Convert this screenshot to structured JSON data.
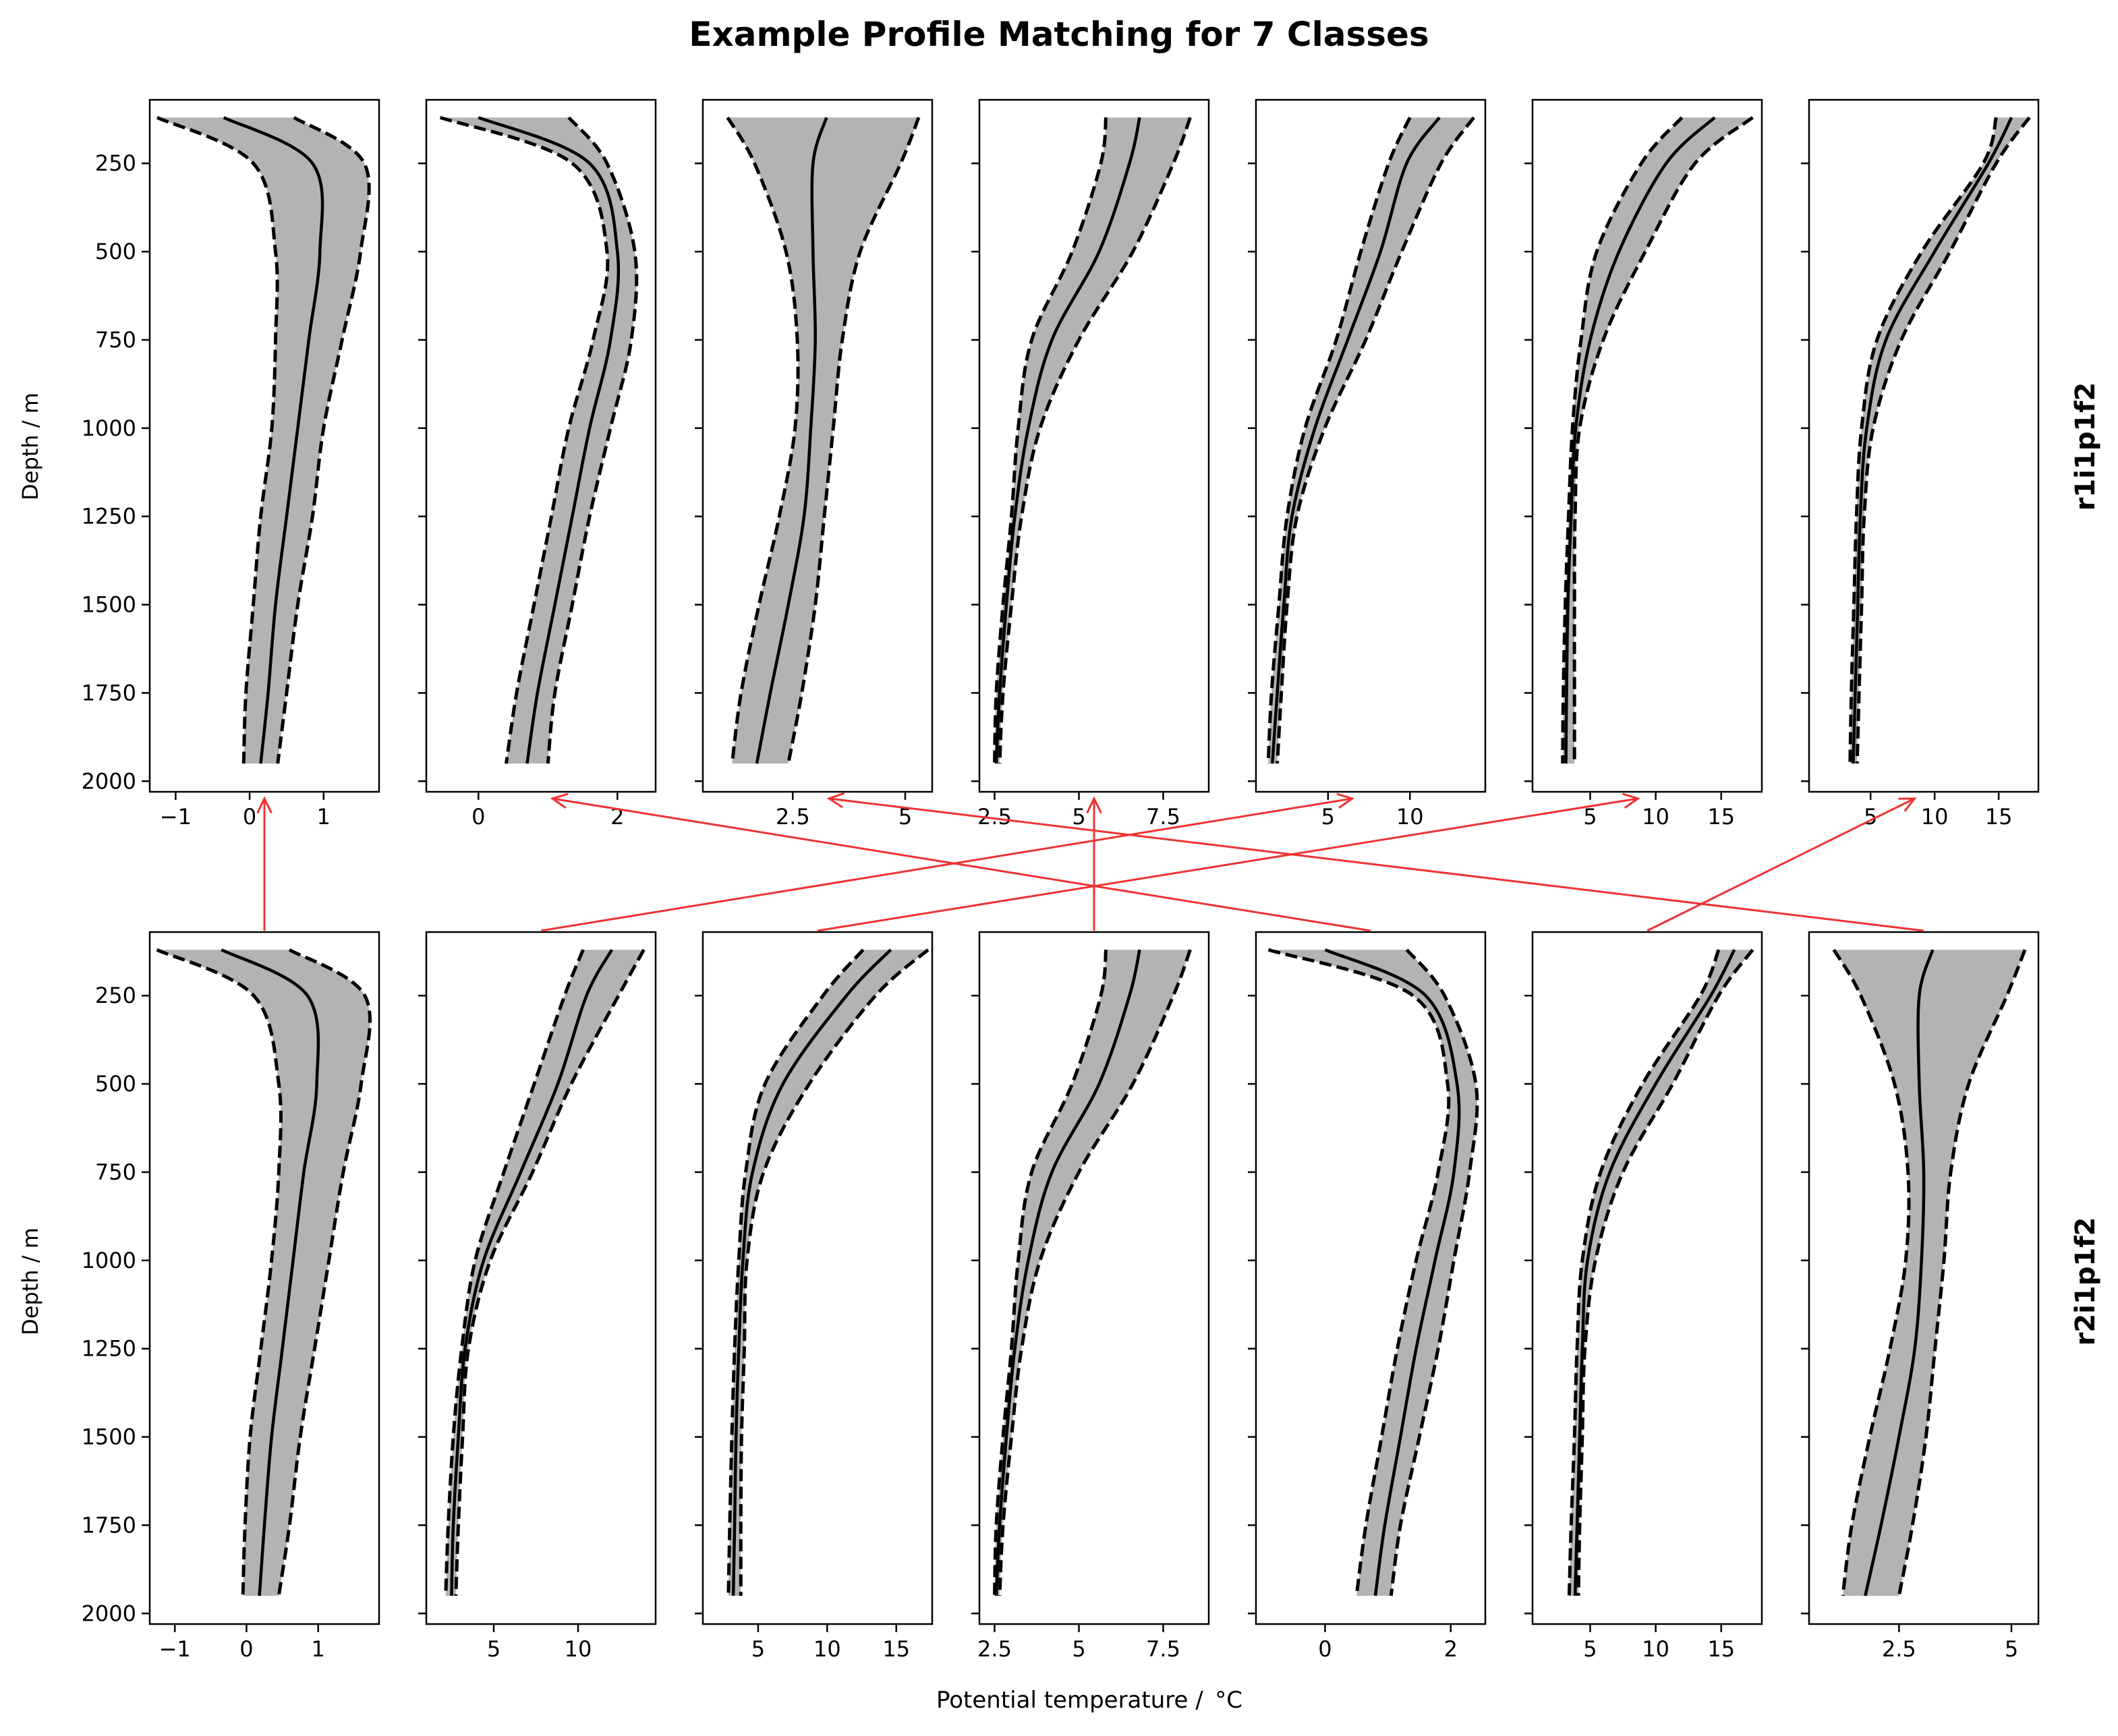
{
  "title": "Example Profile Matching for 7 Classes",
  "xlabel": "Potential temperature / $^\\circ$C",
  "xlabel_display": "Potential temperature /  °C",
  "ylabel": "Depth / m",
  "colors": {
    "band": "#b3b3b3",
    "line": "#000000",
    "arrow": "#ee3333"
  },
  "chart_data": {
    "type": "line",
    "description_free": true,
    "ylim": [
      2030,
      70
    ],
    "yticks": [
      250,
      500,
      750,
      1000,
      1250,
      1500,
      1750,
      2000
    ],
    "depth": [
      120,
      250,
      500,
      750,
      1000,
      1250,
      1500,
      1750,
      1950
    ],
    "rows": [
      {
        "label": "r1i1p1f2",
        "panels": [
          {
            "class": 1,
            "xlim": [
              -1.35,
              1.75
            ],
            "xticks": [
              -1,
              0,
              1
            ],
            "mean": [
              -0.35,
              0.85,
              0.95,
              0.8,
              0.65,
              0.5,
              0.35,
              0.25,
              0.15
            ],
            "lower": [
              -1.25,
              0.05,
              0.35,
              0.35,
              0.3,
              0.15,
              0.05,
              -0.05,
              -0.08
            ],
            "upper": [
              0.6,
              1.55,
              1.5,
              1.25,
              1.0,
              0.85,
              0.65,
              0.5,
              0.38
            ]
          },
          {
            "class": 2,
            "xlim": [
              -0.75,
              2.55
            ],
            "xticks": [
              0,
              2
            ],
            "mean": [
              0.0,
              1.6,
              2.0,
              1.9,
              1.6,
              1.35,
              1.1,
              0.85,
              0.7
            ],
            "lower": [
              -0.55,
              1.35,
              1.85,
              1.65,
              1.3,
              1.05,
              0.8,
              0.55,
              0.4
            ],
            "upper": [
              1.3,
              1.85,
              2.25,
              2.2,
              1.9,
              1.6,
              1.35,
              1.1,
              1.0
            ]
          },
          {
            "class": 3,
            "xlim": [
              0.5,
              5.6
            ],
            "xticks": [
              2.5,
              5.0
            ],
            "mean": [
              3.25,
              2.95,
              2.95,
              3.0,
              2.9,
              2.75,
              2.4,
              2.0,
              1.7
            ],
            "lower": [
              1.05,
              1.65,
              2.35,
              2.6,
              2.55,
              2.2,
              1.75,
              1.35,
              1.15
            ],
            "upper": [
              5.3,
              4.9,
              4.0,
              3.6,
              3.4,
              3.2,
              3.0,
              2.7,
              2.4
            ]
          },
          {
            "class": 4,
            "xlim": [
              2.05,
              8.85
            ],
            "xticks": [
              2.5,
              5.0,
              7.5
            ],
            "mean": [
              6.8,
              6.5,
              5.6,
              4.2,
              3.5,
              3.1,
              2.85,
              2.65,
              2.55
            ],
            "lower": [
              5.8,
              5.65,
              4.8,
              3.6,
              3.2,
              3.0,
              2.75,
              2.55,
              2.5
            ],
            "upper": [
              8.3,
              7.8,
              6.6,
              5.0,
              3.85,
              3.3,
              3.0,
              2.75,
              2.65
            ]
          },
          {
            "class": 5,
            "xlim": [
              0.6,
              14.6
            ],
            "xticks": [
              5,
              10
            ],
            "mean": [
              11.8,
              9.8,
              8.2,
              6.2,
              4.2,
              2.8,
              2.3,
              1.9,
              1.6
            ],
            "lower": [
              10.0,
              8.7,
              7.0,
              5.5,
              3.6,
              2.5,
              2.0,
              1.55,
              1.35
            ],
            "upper": [
              13.9,
              11.9,
              9.5,
              7.3,
              4.8,
              3.1,
              2.5,
              2.15,
              1.9
            ]
          },
          {
            "class": 6,
            "xlim": [
              0.6,
              18.1
            ],
            "xticks": [
              5,
              10,
              15
            ],
            "mean": [
              14.5,
              10.8,
              7.2,
              5.0,
              3.9,
              3.55,
              3.3,
              3.2,
              3.15
            ],
            "lower": [
              12.0,
              8.9,
              5.5,
              4.3,
              3.65,
              3.35,
              3.1,
              2.95,
              2.9
            ],
            "upper": [
              17.4,
              13.0,
              9.2,
              6.0,
              4.2,
              3.85,
              3.8,
              3.8,
              3.8
            ]
          },
          {
            "class": 7,
            "xlim": [
              0.2,
              18.1
            ],
            "xticks": [
              5,
              10,
              15
            ],
            "mean": [
              16.0,
              14.2,
              10.0,
              6.2,
              4.7,
              4.2,
              4.0,
              3.8,
              3.65
            ],
            "lower": [
              14.8,
              13.8,
              9.0,
              5.5,
              4.3,
              3.9,
              3.7,
              3.5,
              3.4
            ],
            "upper": [
              17.4,
              14.8,
              11.2,
              7.4,
              5.2,
              4.5,
              4.3,
              4.1,
              3.95
            ]
          }
        ]
      },
      {
        "label": "r2i1p1f2",
        "panels": [
          {
            "class": 1,
            "xlim": [
              -1.35,
              1.85
            ],
            "xticks": [
              -1,
              0,
              1
            ],
            "mean": [
              -0.35,
              0.85,
              0.98,
              0.8,
              0.65,
              0.5,
              0.35,
              0.25,
              0.18
            ],
            "lower": [
              -1.25,
              0.1,
              0.45,
              0.45,
              0.35,
              0.2,
              0.05,
              -0.02,
              -0.05
            ],
            "upper": [
              0.6,
              1.65,
              1.6,
              1.35,
              1.15,
              0.95,
              0.75,
              0.6,
              0.45
            ]
          },
          {
            "class": 2,
            "xlim": [
              1.0,
              14.6
            ],
            "xticks": [
              5,
              10
            ],
            "mean": [
              12.0,
              10.5,
              8.8,
              6.6,
              4.4,
              3.3,
              2.9,
              2.6,
              2.5
            ],
            "lower": [
              10.3,
              9.2,
              7.4,
              5.6,
              3.9,
              3.1,
              2.6,
              2.3,
              2.15
            ],
            "upper": [
              13.9,
              12.4,
              9.6,
              7.3,
              4.8,
              3.5,
              3.15,
              2.9,
              2.75
            ]
          },
          {
            "class": 3,
            "xlim": [
              1.0,
              17.6
            ],
            "xticks": [
              5,
              10,
              15
            ],
            "mean": [
              14.6,
              11.4,
              6.8,
              4.6,
              3.9,
              3.6,
              3.4,
              3.3,
              3.2
            ],
            "lower": [
              12.6,
              9.7,
              5.5,
              4.1,
              3.6,
              3.3,
              3.1,
              2.95,
              2.85
            ],
            "upper": [
              17.3,
              13.5,
              8.7,
              5.4,
              4.2,
              4.0,
              3.8,
              3.75,
              3.75
            ]
          },
          {
            "class": 4,
            "xlim": [
              2.05,
              8.85
            ],
            "xticks": [
              2.5,
              5.0,
              7.5
            ],
            "mean": [
              6.8,
              6.5,
              5.6,
              4.2,
              3.5,
              3.1,
              2.85,
              2.65,
              2.55
            ],
            "lower": [
              5.8,
              5.65,
              4.8,
              3.6,
              3.2,
              3.0,
              2.75,
              2.55,
              2.5
            ],
            "upper": [
              8.3,
              7.8,
              6.6,
              5.0,
              3.85,
              3.3,
              3.0,
              2.75,
              2.65
            ]
          },
          {
            "class": 5,
            "xlim": [
              -1.1,
              2.55
            ],
            "xticks": [
              0,
              2
            ],
            "mean": [
              0.0,
              1.6,
              2.1,
              2.05,
              1.75,
              1.45,
              1.2,
              0.95,
              0.8
            ],
            "lower": [
              -0.9,
              1.4,
              1.95,
              1.8,
              1.45,
              1.15,
              0.9,
              0.65,
              0.5
            ],
            "upper": [
              1.3,
              1.9,
              2.4,
              2.3,
              2.05,
              1.8,
              1.5,
              1.2,
              1.05
            ]
          },
          {
            "class": 6,
            "xlim": [
              0.6,
              18.1
            ],
            "xticks": [
              5,
              10,
              15
            ],
            "mean": [
              16.0,
              14.2,
              10.0,
              6.5,
              4.8,
              4.4,
              4.2,
              4.0,
              3.85
            ],
            "lower": [
              14.8,
              13.4,
              9.0,
              5.8,
              4.4,
              4.0,
              3.8,
              3.55,
              3.4
            ],
            "upper": [
              17.4,
              14.8,
              11.3,
              7.5,
              5.4,
              4.6,
              4.4,
              4.2,
              4.1
            ]
          },
          {
            "class": 7,
            "xlim": [
              0.5,
              5.6
            ],
            "xticks": [
              2.5,
              5.0
            ],
            "mean": [
              3.25,
              2.95,
              2.95,
              3.05,
              3.0,
              2.85,
              2.5,
              2.1,
              1.75
            ],
            "lower": [
              1.05,
              1.65,
              2.4,
              2.7,
              2.65,
              2.3,
              1.85,
              1.45,
              1.25
            ],
            "upper": [
              5.3,
              4.9,
              4.05,
              3.65,
              3.5,
              3.3,
              3.1,
              2.8,
              2.5
            ]
          }
        ]
      }
    ],
    "matching": [
      {
        "from": 1,
        "to": 1,
        "from_x": 0.0,
        "to_x": 0.0
      },
      {
        "from": 2,
        "to": 5,
        "from_x": 0.5,
        "to_x": 0.42
      },
      {
        "from": 3,
        "to": 6,
        "from_x": 0.5,
        "to_x": 0.46
      },
      {
        "from": 4,
        "to": 4,
        "from_x": 0.5,
        "to_x": 0.5
      },
      {
        "from": 5,
        "to": 2,
        "from_x": 0.5,
        "to_x": 0.55
      },
      {
        "from": 6,
        "to": 7,
        "from_x": 0.5,
        "to_x": 0.46
      },
      {
        "from": 7,
        "to": 3,
        "from_x": 0.5,
        "to_x": 0.55
      }
    ]
  }
}
